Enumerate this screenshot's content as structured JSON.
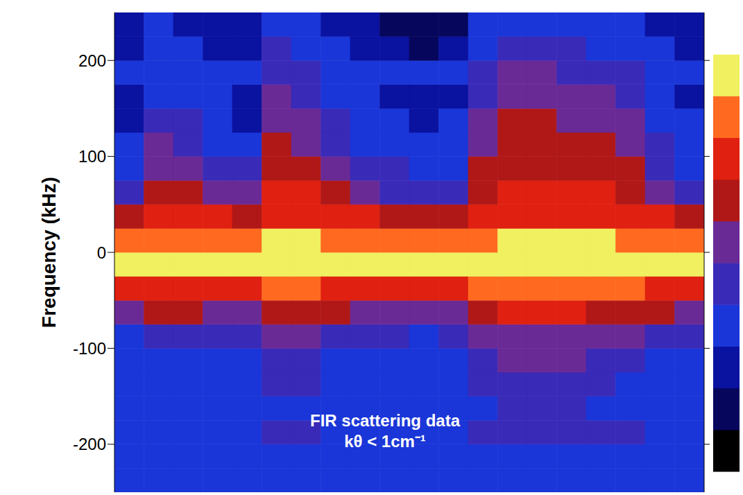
{
  "chart_data": {
    "type": "heatmap",
    "y_label": "Frequency (kHz)",
    "annotations": [
      "FIR scattering data",
      "kθ < 1cm⁻¹"
    ],
    "xlim": [
      0,
      20
    ],
    "xticks": [
      0,
      1,
      2,
      3,
      4,
      5,
      6,
      7,
      8,
      9,
      10,
      11,
      12,
      13,
      14,
      15,
      16,
      17,
      18,
      19,
      20
    ],
    "ylim": [
      -250,
      250
    ],
    "yticks": [
      -200,
      -100,
      0,
      100,
      200
    ],
    "tick_labels": "y",
    "x_edges": [
      0,
      1,
      2,
      3,
      4,
      5,
      6,
      7,
      8,
      9,
      10,
      11,
      12,
      13,
      14,
      15,
      16,
      17,
      18,
      19,
      20
    ],
    "y_edges": [
      -250,
      -225,
      -200,
      -175,
      -150,
      -125,
      -100,
      -75,
      -50,
      -25,
      0,
      25,
      50,
      75,
      100,
      125,
      150,
      175,
      200,
      225,
      250
    ],
    "cells": [
      [
        3,
        3,
        3,
        3,
        3,
        3,
        3,
        5,
        7,
        9,
        8,
        6,
        4,
        3,
        3,
        2,
        2,
        3,
        2,
        2
      ],
      [
        3,
        3,
        3,
        3,
        3,
        3,
        4,
        6,
        7,
        9,
        8,
        7,
        6,
        5,
        5,
        4,
        3,
        3,
        3,
        3
      ],
      [
        3,
        3,
        3,
        3,
        3,
        3,
        4,
        6,
        7,
        9,
        8,
        7,
        6,
        5,
        4,
        4,
        3,
        3,
        3,
        2
      ],
      [
        3,
        3,
        3,
        3,
        3,
        3,
        4,
        5,
        7,
        9,
        8,
        7,
        5,
        4,
        3,
        3,
        3,
        3,
        2,
        2
      ],
      [
        3,
        3,
        3,
        3,
        3,
        3,
        4,
        5,
        7,
        9,
        8,
        6,
        5,
        4,
        3,
        2,
        2,
        3,
        2,
        2
      ],
      [
        3,
        3,
        4,
        3,
        4,
        4,
        5,
        6,
        8,
        9,
        9,
        7,
        7,
        6,
        6,
        5,
        5,
        4,
        4,
        3
      ],
      [
        3,
        3,
        4,
        3,
        4,
        4,
        5,
        6,
        8,
        9,
        9,
        7,
        7,
        6,
        5,
        5,
        4,
        4,
        3,
        3
      ],
      [
        3,
        3,
        3,
        3,
        3,
        3,
        4,
        6,
        7,
        9,
        8,
        7,
        6,
        5,
        4,
        4,
        3,
        3,
        3,
        2
      ],
      [
        3,
        3,
        3,
        3,
        3,
        3,
        4,
        5,
        7,
        9,
        8,
        7,
        5,
        4,
        3,
        3,
        3,
        3,
        2,
        2
      ],
      [
        3,
        3,
        3,
        3,
        3,
        3,
        4,
        5,
        7,
        9,
        8,
        6,
        4,
        4,
        3,
        3,
        2,
        3,
        2,
        1
      ],
      [
        3,
        3,
        3,
        3,
        3,
        3,
        3,
        5,
        7,
        9,
        8,
        6,
        4,
        3,
        3,
        2,
        2,
        3,
        1,
        1
      ],
      [
        3,
        3,
        3,
        3,
        3,
        3,
        4,
        5,
        7,
        9,
        8,
        6,
        4,
        3,
        3,
        3,
        2,
        3,
        2,
        1
      ],
      [
        3,
        3,
        4,
        3,
        4,
        4,
        5,
        6,
        8,
        9,
        8,
        7,
        6,
        6,
        5,
        5,
        4,
        4,
        3,
        3
      ],
      [
        3,
        3,
        4,
        4,
        4,
        5,
        5,
        7,
        8,
        9,
        9,
        7,
        7,
        6,
        6,
        6,
        5,
        5,
        4,
        3
      ],
      [
        3,
        3,
        4,
        4,
        4,
        5,
        5,
        7,
        8,
        9,
        9,
        7,
        7,
        6,
        6,
        6,
        5,
        5,
        4,
        3
      ],
      [
        3,
        3,
        4,
        4,
        4,
        5,
        5,
        7,
        8,
        9,
        9,
        7,
        7,
        6,
        6,
        5,
        5,
        4,
        4,
        3
      ],
      [
        3,
        3,
        4,
        3,
        4,
        4,
        5,
        6,
        8,
        9,
        9,
        7,
        7,
        6,
        6,
        5,
        5,
        4,
        3,
        3
      ],
      [
        3,
        3,
        4,
        3,
        3,
        4,
        5,
        6,
        8,
        9,
        8,
        7,
        6,
        6,
        5,
        5,
        4,
        4,
        3,
        3
      ],
      [
        3,
        3,
        3,
        3,
        3,
        3,
        4,
        6,
        7,
        9,
        8,
        7,
        5,
        4,
        4,
        3,
        3,
        3,
        3,
        2
      ],
      [
        3,
        3,
        3,
        3,
        3,
        3,
        4,
        5,
        7,
        9,
        8,
        6,
        4,
        3,
        3,
        3,
        2,
        3,
        2,
        2
      ]
    ],
    "colorbar": {
      "range": [
        0,
        10
      ]
    }
  }
}
